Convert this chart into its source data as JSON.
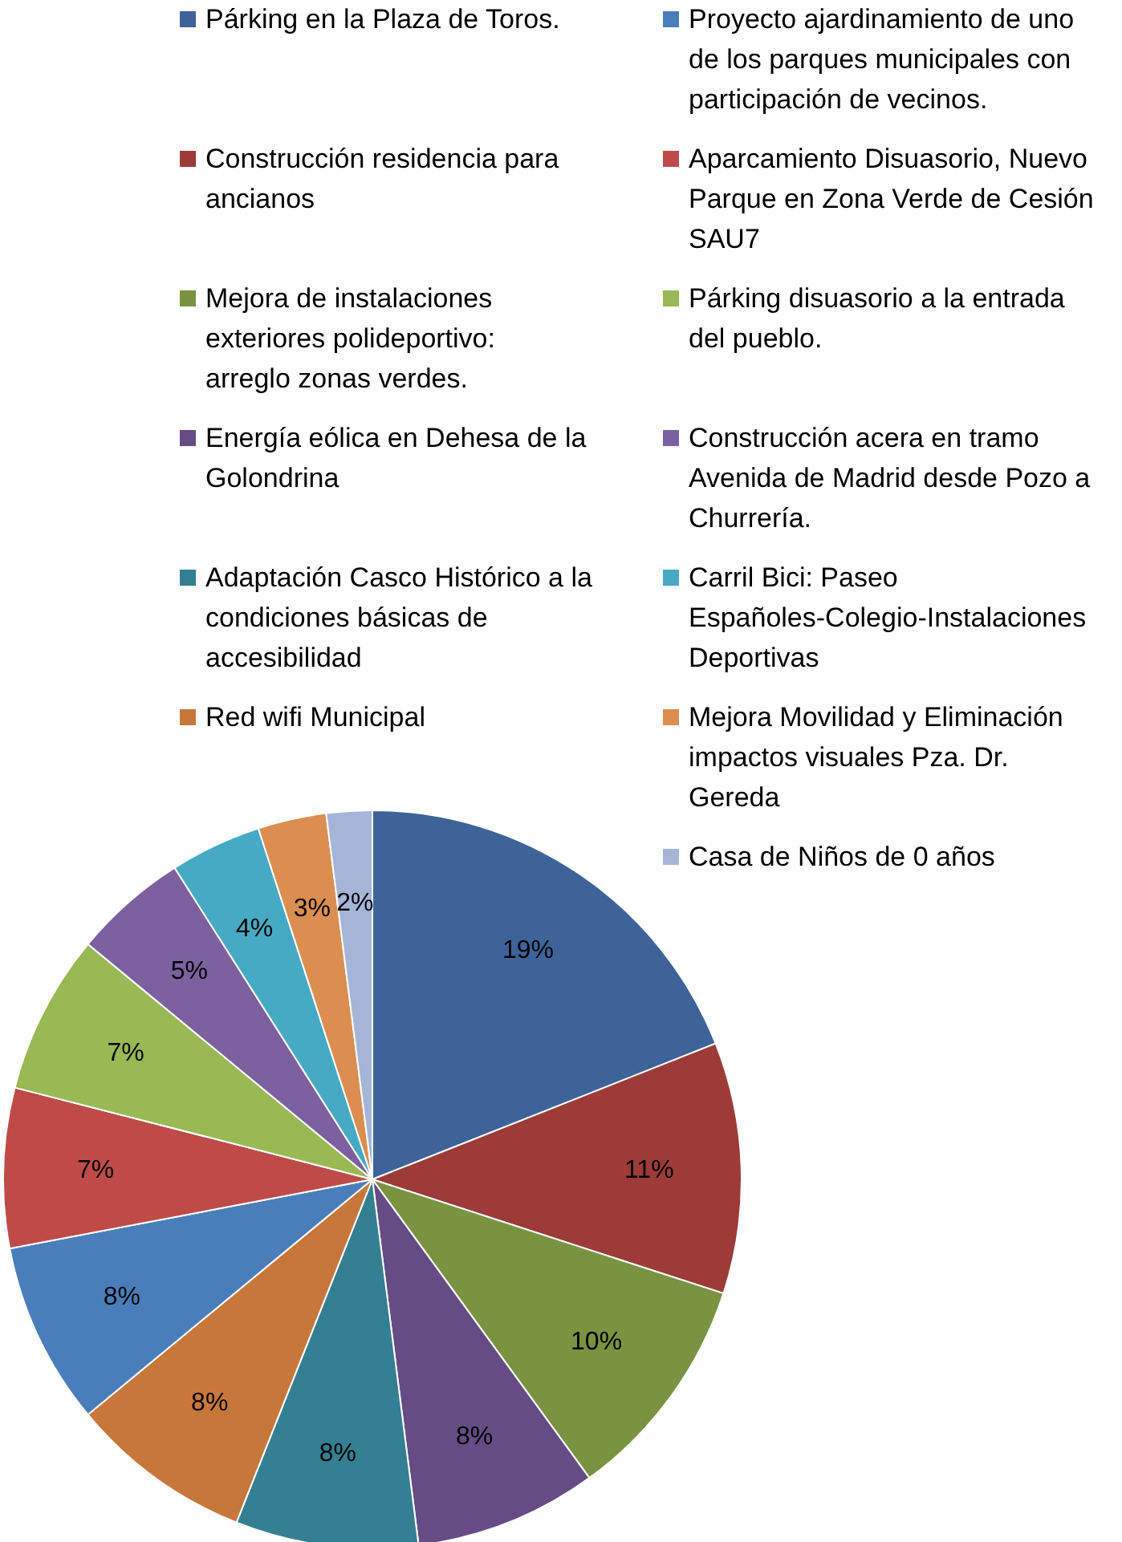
{
  "chart_data": {
    "type": "pie",
    "categories": [
      "Párking en la Plaza de Toros.",
      "Construcción residencia para ancianos",
      "Mejora de instalaciones exteriores polideportivo: arreglo zonas verdes.",
      "Energía eólica en Dehesa de la Golondrina",
      "Adaptación Casco Histórico a la condiciones básicas de accesibilidad",
      "Red wifi Municipal",
      "Proyecto ajardinamiento de uno de los parques municipales con participación de vecinos.",
      "Aparcamiento Disuasorio, Nuevo Parque en Zona Verde de Cesión SAU7",
      "Párking disuasorio a la entrada del pueblo.",
      "Construcción acera en tramo Avenida de Madrid desde Pozo a Churrería.",
      "Carril Bici: Paseo Españoles-Colegio-Instalaciones Deportivas",
      "Mejora Movilidad y Eliminación impactos visuales Pza. Dr. Gereda",
      "Casa de Niños de 0 años"
    ],
    "values": [
      19,
      11,
      10,
      8,
      8,
      8,
      8,
      7,
      7,
      5,
      4,
      3,
      2
    ],
    "colors": [
      "#3d6399",
      "#9c3b38",
      "#7a9340",
      "#654c85",
      "#357f92",
      "#c8773a",
      "#4a7ebb",
      "#be4b48",
      "#98b954",
      "#7d60a0",
      "#46aac5",
      "#db8e4f",
      "#a5b5d8"
    ],
    "value_labels": [
      "19%",
      "11%",
      "10%",
      "8%",
      "8%",
      "8%",
      "8%",
      "7%",
      "7%",
      "5%",
      "4%",
      "3%",
      "2%"
    ],
    "legend": "top"
  }
}
